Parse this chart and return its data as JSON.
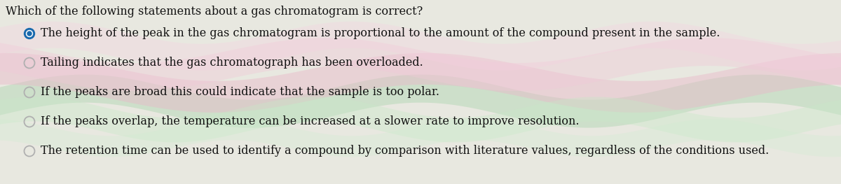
{
  "question": "Which of the following statements about a gas chromatogram is correct?",
  "options": [
    {
      "text": "The height of the peak in the gas chromatogram is proportional to the amount of the compound present in the sample.",
      "selected": true
    },
    {
      "text": "Tailing indicates that the gas chromatograph has been overloaded.",
      "selected": false
    },
    {
      "text": "If the peaks are broad this could indicate that the sample is too polar.",
      "selected": false
    },
    {
      "text": "If the peaks overlap, the temperature can be increased at a slower rate to improve resolution.",
      "selected": false
    },
    {
      "text": "The retention time can be used to identify a compound by comparison with literature values, regardless of the conditions used.",
      "selected": false
    }
  ],
  "background_color": "#e8e8e0",
  "text_color": "#111111",
  "selected_fill_color": "#1a6aad",
  "selected_dot_color": "#ffffff",
  "unselected_ring_color": "#b0b0b0",
  "question_fontsize": 11.5,
  "option_fontsize": 11.5,
  "figwidth": 12.0,
  "figheight": 2.63,
  "dpi": 100
}
